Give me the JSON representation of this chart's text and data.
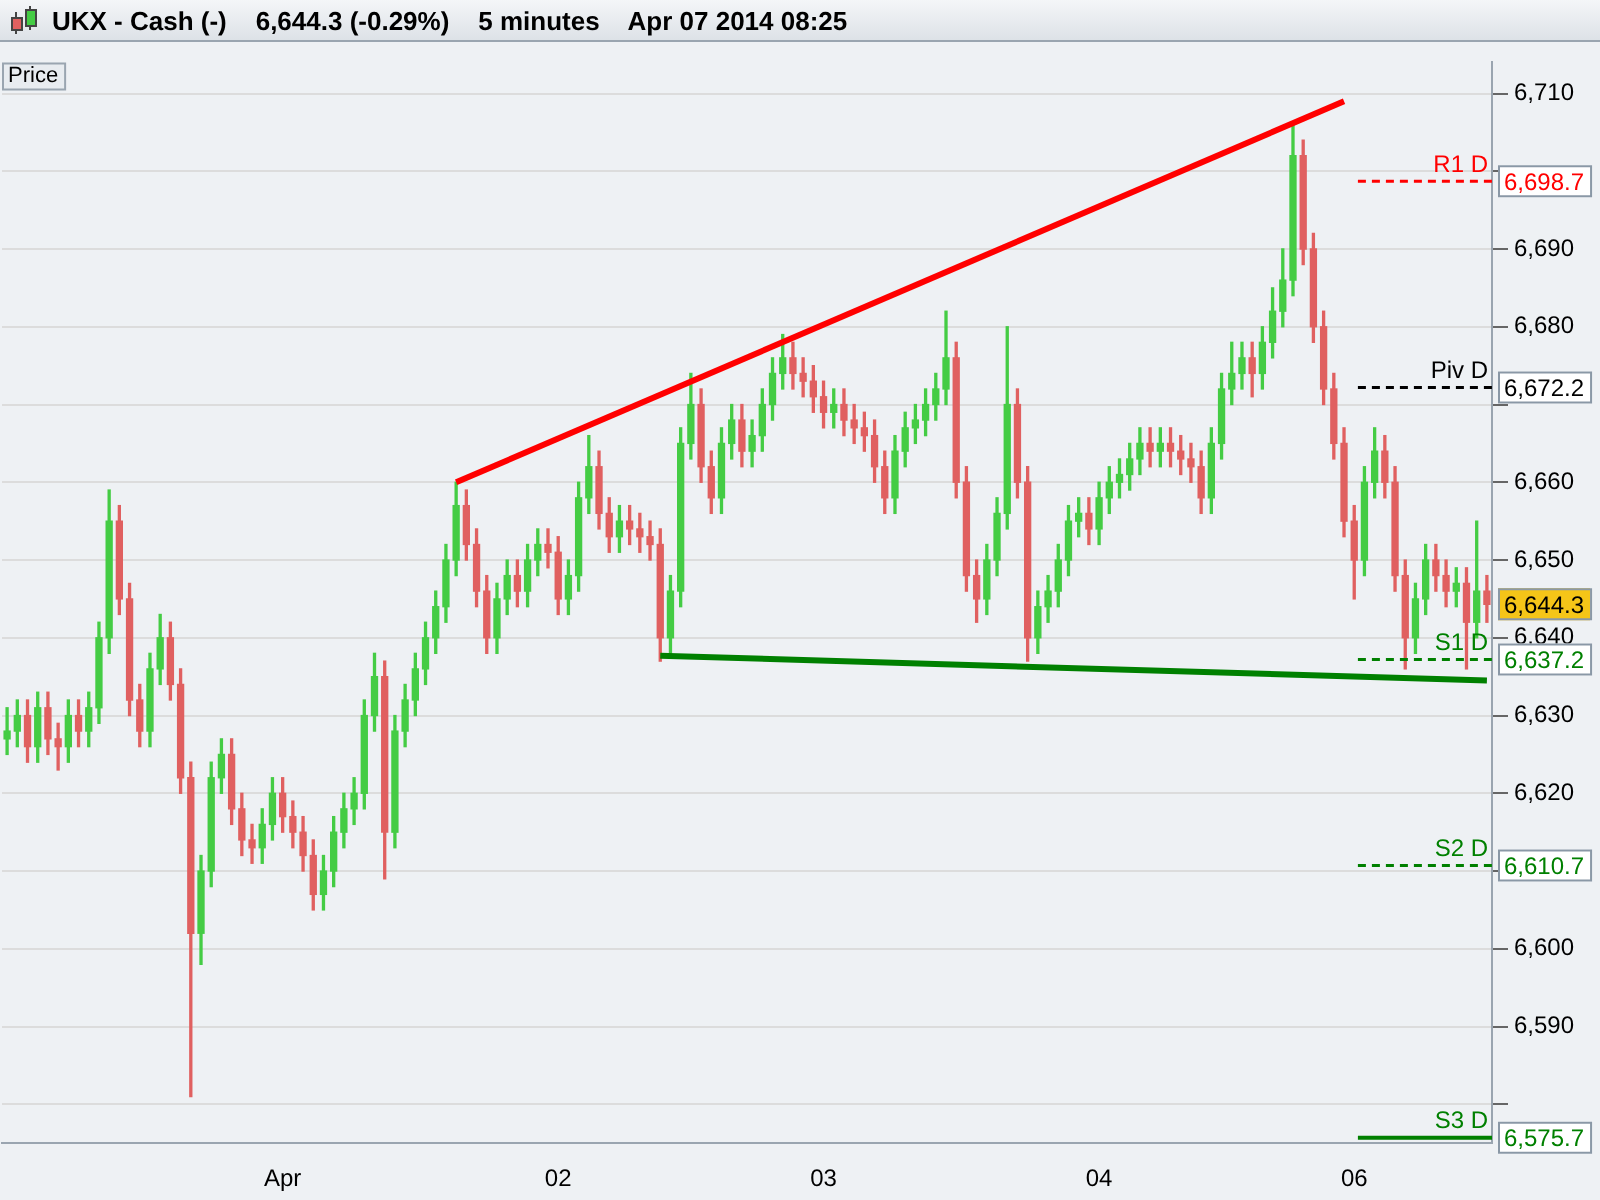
{
  "chart_data": {
    "type": "candlestick",
    "title": "UKX - Cash (-)    6,644.3 (-0.29%)    5 minutes    Apr 07 2014 08:25",
    "ylabel": "Price",
    "categories": [
      null,
      null,
      null,
      null,
      null,
      null,
      null,
      null,
      null,
      null,
      null,
      null,
      null,
      null,
      null,
      null,
      null,
      null,
      null,
      null,
      null,
      null,
      null,
      null,
      null,
      null,
      null,
      "Apr",
      null,
      null,
      null,
      null,
      null,
      null,
      null,
      null,
      null,
      null,
      null,
      null,
      null,
      null,
      null,
      null,
      null,
      null,
      null,
      null,
      null,
      null,
      null,
      null,
      null,
      null,
      "02",
      null,
      null,
      null,
      null,
      null,
      null,
      null,
      null,
      null,
      null,
      null,
      null,
      null,
      null,
      null,
      null,
      null,
      null,
      null,
      null,
      null,
      null,
      null,
      null,
      null,
      "03",
      null,
      null,
      null,
      null,
      null,
      null,
      null,
      null,
      null,
      null,
      null,
      null,
      null,
      null,
      null,
      null,
      null,
      null,
      null,
      null,
      null,
      null,
      null,
      null,
      null,
      null,
      "04",
      null,
      null,
      null,
      null,
      null,
      null,
      null,
      null,
      null,
      null,
      null,
      null,
      null,
      null,
      null,
      null,
      null,
      null,
      null,
      null,
      null,
      null,
      null,
      null,
      "06",
      null,
      null,
      null,
      null,
      null,
      null,
      null,
      null,
      null,
      null,
      null,
      null,
      null
    ],
    "ohlc": [
      [
        6627,
        6631,
        6625,
        6628
      ],
      [
        6628,
        6632,
        6626,
        6630
      ],
      [
        6630,
        6632,
        6624,
        6626
      ],
      [
        6626,
        6633,
        6624,
        6631
      ],
      [
        6631,
        6633,
        6625,
        6627
      ],
      [
        6627,
        6629,
        6623,
        6626
      ],
      [
        6626,
        6632,
        6624,
        6630
      ],
      [
        6630,
        6632,
        6626,
        6628
      ],
      [
        6628,
        6633,
        6626,
        6631
      ],
      [
        6631,
        6642,
        6629,
        6640
      ],
      [
        6640,
        6659,
        6638,
        6655
      ],
      [
        6655,
        6657,
        6643,
        6645
      ],
      [
        6645,
        6647,
        6630,
        6632
      ],
      [
        6632,
        6634,
        6626,
        6628
      ],
      [
        6628,
        6638,
        6626,
        6636
      ],
      [
        6636,
        6643,
        6634,
        6640
      ],
      [
        6640,
        6642,
        6632,
        6634
      ],
      [
        6634,
        6636,
        6620,
        6622
      ],
      [
        6622,
        6624,
        6581,
        6602
      ],
      [
        6602,
        6612,
        6598,
        6610
      ],
      [
        6610,
        6624,
        6608,
        6622
      ],
      [
        6622,
        6627,
        6620,
        6625
      ],
      [
        6625,
        6627,
        6616,
        6618
      ],
      [
        6618,
        6620,
        6612,
        6614
      ],
      [
        6614,
        6616,
        6611,
        6613
      ],
      [
        6613,
        6618,
        6611,
        6616
      ],
      [
        6616,
        6622,
        6614,
        6620
      ],
      [
        6620,
        6622,
        6615,
        6617
      ],
      [
        6617,
        6619,
        6613,
        6615
      ],
      [
        6615,
        6617,
        6610,
        6612
      ],
      [
        6612,
        6614,
        6605,
        6607
      ],
      [
        6607,
        6612,
        6605,
        6610
      ],
      [
        6610,
        6617,
        6608,
        6615
      ],
      [
        6615,
        6620,
        6613,
        6618
      ],
      [
        6618,
        6622,
        6616,
        6620
      ],
      [
        6620,
        6632,
        6618,
        6630
      ],
      [
        6630,
        6638,
        6628,
        6635
      ],
      [
        6635,
        6637,
        6609,
        6615
      ],
      [
        6615,
        6630,
        6613,
        6628
      ],
      [
        6628,
        6634,
        6626,
        6632
      ],
      [
        6632,
        6638,
        6630,
        6636
      ],
      [
        6636,
        6642,
        6634,
        6640
      ],
      [
        6640,
        6646,
        6638,
        6644
      ],
      [
        6644,
        6652,
        6642,
        6650
      ],
      [
        6650,
        6660,
        6648,
        6657
      ],
      [
        6657,
        6659,
        6650,
        6652
      ],
      [
        6652,
        6654,
        6644,
        6646
      ],
      [
        6646,
        6648,
        6638,
        6640
      ],
      [
        6640,
        6647,
        6638,
        6645
      ],
      [
        6645,
        6650,
        6643,
        6648
      ],
      [
        6648,
        6650,
        6644,
        6646
      ],
      [
        6646,
        6652,
        6644,
        6650
      ],
      [
        6650,
        6654,
        6648,
        6652
      ],
      [
        6652,
        6654,
        6649,
        6651
      ],
      [
        6651,
        6653,
        6643,
        6645
      ],
      [
        6645,
        6650,
        6643,
        6648
      ],
      [
        6648,
        6660,
        6646,
        6658
      ],
      [
        6658,
        6666,
        6656,
        6662
      ],
      [
        6662,
        6664,
        6654,
        6656
      ],
      [
        6656,
        6658,
        6651,
        6653
      ],
      [
        6653,
        6657,
        6651,
        6655
      ],
      [
        6655,
        6657,
        6652,
        6654
      ],
      [
        6654,
        6656,
        6651,
        6653
      ],
      [
        6653,
        6655,
        6650,
        6652
      ],
      [
        6652,
        6654,
        6637,
        6640
      ],
      [
        6640,
        6648,
        6638,
        6646
      ],
      [
        6646,
        6667,
        6644,
        6665
      ],
      [
        6665,
        6674,
        6663,
        6670
      ],
      [
        6670,
        6672,
        6660,
        6662
      ],
      [
        6662,
        6664,
        6656,
        6658
      ],
      [
        6658,
        6667,
        6656,
        6665
      ],
      [
        6665,
        6670,
        6663,
        6668
      ],
      [
        6668,
        6670,
        6662,
        6664
      ],
      [
        6664,
        6668,
        6662,
        6666
      ],
      [
        6666,
        6672,
        6664,
        6670
      ],
      [
        6670,
        6676,
        6668,
        6674
      ],
      [
        6674,
        6679,
        6672,
        6676
      ],
      [
        6676,
        6678,
        6672,
        6674
      ],
      [
        6674,
        6676,
        6671,
        6673
      ],
      [
        6673,
        6675,
        6669,
        6671
      ],
      [
        6671,
        6673,
        6667,
        6669
      ],
      [
        6669,
        6672,
        6667,
        6670
      ],
      [
        6670,
        6672,
        6666,
        6668
      ],
      [
        6668,
        6670,
        6665,
        6667
      ],
      [
        6667,
        6669,
        6664,
        6666
      ],
      [
        6666,
        6668,
        6660,
        6662
      ],
      [
        6662,
        6664,
        6656,
        6658
      ],
      [
        6658,
        6666,
        6656,
        6664
      ],
      [
        6664,
        6669,
        6662,
        6667
      ],
      [
        6667,
        6670,
        6665,
        6668
      ],
      [
        6668,
        6672,
        6666,
        6670
      ],
      [
        6670,
        6674,
        6668,
        6672
      ],
      [
        6672,
        6682,
        6670,
        6676
      ],
      [
        6676,
        6678,
        6658,
        6660
      ],
      [
        6660,
        6662,
        6646,
        6648
      ],
      [
        6648,
        6650,
        6642,
        6645
      ],
      [
        6645,
        6652,
        6643,
        6650
      ],
      [
        6650,
        6658,
        6648,
        6656
      ],
      [
        6656,
        6680,
        6654,
        6670
      ],
      [
        6670,
        6672,
        6658,
        6660
      ],
      [
        6660,
        6662,
        6637,
        6640
      ],
      [
        6640,
        6646,
        6638,
        6644
      ],
      [
        6644,
        6648,
        6642,
        6646
      ],
      [
        6646,
        6652,
        6644,
        6650
      ],
      [
        6650,
        6657,
        6648,
        6655
      ],
      [
        6655,
        6658,
        6653,
        6656
      ],
      [
        6656,
        6658,
        6652,
        6654
      ],
      [
        6654,
        6660,
        6652,
        6658
      ],
      [
        6658,
        6662,
        6656,
        6660
      ],
      [
        6660,
        6663,
        6658,
        6661
      ],
      [
        6661,
        6665,
        6659,
        6663
      ],
      [
        6663,
        6667,
        6661,
        6665
      ],
      [
        6665,
        6667,
        6662,
        6664
      ],
      [
        6664,
        6667,
        6662,
        6665
      ],
      [
        6665,
        6667,
        6662,
        6664
      ],
      [
        6664,
        6666,
        6661,
        6663
      ],
      [
        6663,
        6665,
        6660,
        6662
      ],
      [
        6662,
        6664,
        6656,
        6658
      ],
      [
        6658,
        6667,
        6656,
        6665
      ],
      [
        6665,
        6674,
        6663,
        6672
      ],
      [
        6672,
        6678,
        6670,
        6674
      ],
      [
        6674,
        6678,
        6672,
        6676
      ],
      [
        6676,
        6678,
        6671,
        6674
      ],
      [
        6674,
        6680,
        6672,
        6678
      ],
      [
        6678,
        6685,
        6676,
        6682
      ],
      [
        6682,
        6690,
        6680,
        6686
      ],
      [
        6686,
        6706,
        6684,
        6702
      ],
      [
        6702,
        6704,
        6688,
        6690
      ],
      [
        6690,
        6692,
        6678,
        6680
      ],
      [
        6680,
        6682,
        6670,
        6672
      ],
      [
        6672,
        6674,
        6663,
        6665
      ],
      [
        6665,
        6667,
        6653,
        6655
      ],
      [
        6655,
        6657,
        6645,
        6650
      ],
      [
        6650,
        6662,
        6648,
        6660
      ],
      [
        6660,
        6667,
        6658,
        6664
      ],
      [
        6664,
        6666,
        6658,
        6660
      ],
      [
        6660,
        6662,
        6646,
        6648
      ],
      [
        6648,
        6650,
        6636,
        6640
      ],
      [
        6640,
        6647,
        6638,
        6645
      ],
      [
        6645,
        6652,
        6643,
        6650
      ],
      [
        6650,
        6652,
        6646,
        6648
      ],
      [
        6648,
        6650,
        6644,
        6646
      ],
      [
        6646,
        6649,
        6644,
        6647
      ],
      [
        6647,
        6649,
        6636,
        6642
      ],
      [
        6642,
        6655,
        6640,
        6646
      ],
      [
        6646,
        6648,
        6642,
        6644.3
      ]
    ],
    "series": [
      {
        "type": "line",
        "color": "#ff0000",
        "values": [
          null,
          null,
          null,
          null,
          null,
          null,
          null,
          null,
          null,
          null,
          null,
          null,
          null,
          null,
          null,
          null,
          null,
          null,
          null,
          null,
          null,
          null,
          null,
          null,
          null,
          null,
          null,
          null,
          null,
          null,
          null,
          null,
          null,
          null,
          null,
          null,
          null,
          null,
          null,
          null,
          null,
          null,
          null,
          null,
          6660,
          null,
          null,
          null,
          null,
          null,
          null,
          null,
          null,
          null,
          null,
          null,
          null,
          null,
          null,
          null,
          null,
          null,
          null,
          null,
          null,
          null,
          null,
          null,
          null,
          null,
          null,
          null,
          null,
          null,
          null,
          null,
          null,
          null,
          null,
          null,
          null,
          null,
          null,
          null,
          null,
          null,
          null,
          null,
          null,
          null,
          null,
          null,
          null,
          null,
          null,
          null,
          null,
          null,
          null,
          null,
          null,
          null,
          null,
          null,
          null,
          null,
          null,
          null,
          null,
          null,
          null,
          null,
          null,
          null,
          null,
          null,
          null,
          null,
          null,
          null,
          null,
          null,
          null,
          null,
          null,
          null,
          null,
          null,
          null,
          null,
          null,
          6709,
          null,
          null,
          null,
          null,
          null,
          null,
          null,
          null,
          null,
          null,
          null,
          null,
          null,
          null
        ]
      },
      {
        "type": "line",
        "color": "#008000",
        "values": [
          null,
          null,
          null,
          null,
          null,
          null,
          null,
          null,
          null,
          null,
          null,
          null,
          null,
          null,
          null,
          null,
          null,
          null,
          null,
          null,
          null,
          null,
          null,
          null,
          null,
          null,
          null,
          null,
          null,
          null,
          null,
          null,
          null,
          null,
          null,
          null,
          null,
          null,
          null,
          null,
          null,
          null,
          null,
          null,
          null,
          null,
          null,
          null,
          null,
          null,
          null,
          null,
          null,
          null,
          null,
          null,
          null,
          null,
          null,
          null,
          null,
          null,
          null,
          null,
          6637.7,
          null,
          null,
          null,
          null,
          null,
          null,
          null,
          null,
          null,
          null,
          null,
          null,
          null,
          null,
          null,
          null,
          null,
          null,
          null,
          null,
          null,
          null,
          null,
          null,
          null,
          null,
          null,
          null,
          null,
          null,
          null,
          null,
          null,
          null,
          null,
          null,
          null,
          null,
          null,
          null,
          null,
          null,
          null,
          null,
          null,
          null,
          null,
          null,
          null,
          null,
          null,
          null,
          null,
          null,
          null,
          null,
          null,
          null,
          null,
          null,
          null,
          null,
          null,
          null,
          null,
          null,
          null,
          null,
          null,
          null,
          null,
          null,
          null,
          null,
          null,
          null,
          null,
          null,
          null,
          null,
          6634.5
        ]
      }
    ],
    "ylim": [
      6575,
      6714
    ],
    "yticks": [
      {
        "value": 6580,
        "label": null
      },
      {
        "value": 6590,
        "label": "6,590"
      },
      {
        "value": 6600,
        "label": "6,600"
      },
      {
        "value": 6610,
        "label": null
      },
      {
        "value": 6620,
        "label": "6,620"
      },
      {
        "value": 6630,
        "label": "6,630"
      },
      {
        "value": 6640,
        "label": "6,640"
      },
      {
        "value": 6650,
        "label": "6,650"
      },
      {
        "value": 6660,
        "label": "6,660"
      },
      {
        "value": 6670,
        "label": null
      },
      {
        "value": 6680,
        "label": "6,680"
      },
      {
        "value": 6690,
        "label": "6,690"
      },
      {
        "value": 6700,
        "label": null
      },
      {
        "value": 6710,
        "label": "6,710"
      }
    ],
    "ref_lines": [
      {
        "axis": "y",
        "value": 6698.7,
        "label": "R1 D",
        "color": "#ff0000",
        "line_style": "dashed"
      },
      {
        "axis": "y",
        "value": 6672.2,
        "label": "Piv D",
        "color": "#000000",
        "line_style": "dashed"
      },
      {
        "axis": "y",
        "value": 6637.2,
        "label": "S1 D",
        "color": "#008000",
        "line_style": "dashed"
      },
      {
        "axis": "y",
        "value": 6610.7,
        "label": "S2 D",
        "color": "#008000",
        "line_style": "dashed"
      },
      {
        "axis": "y",
        "value": 6575.7,
        "label": "S3 D",
        "color": "#008000",
        "line_style": "solid"
      }
    ],
    "annotations": [
      "6,644.3",
      "6,698.7",
      "6,672.2",
      "6,637.2",
      "6,610.7",
      "6,575.7"
    ],
    "grid": "y",
    "legend": false
  }
}
